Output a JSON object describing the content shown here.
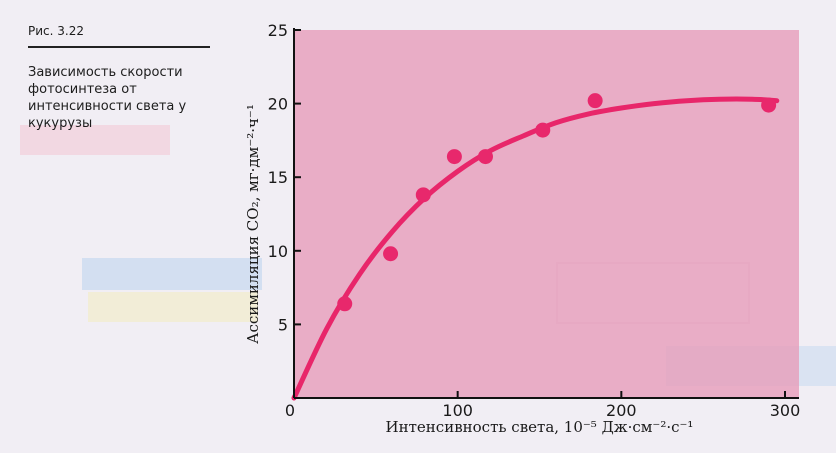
{
  "figure": {
    "number": "Рис. 3.22",
    "caption": "Зависимость скорости фотосинтеза от интенсивности света у кукурузы"
  },
  "colors": {
    "panel": "#e79bb8",
    "curve": "#e8266a",
    "points": "#e8286c"
  },
  "chart_data": {
    "type": "scatter",
    "xlabel": "Интенсивность света, 10⁻⁵ Дж·см⁻²·с⁻¹",
    "ylabel": "Ассимиляция CO₂, мг·дм⁻²·ч⁻¹",
    "xlim": [
      0,
      300
    ],
    "ylim": [
      0,
      25
    ],
    "x_ticks": [
      "100",
      "200",
      "300"
    ],
    "y_ticks": [
      "5",
      "10",
      "15",
      "20",
      "25"
    ],
    "origin_label": "0",
    "grid": false,
    "series": [
      {
        "x": [
          31,
          59,
          79,
          98,
          117,
          152,
          184,
          290
        ],
        "y": [
          6.4,
          9.8,
          13.8,
          16.4,
          16.4,
          18.2,
          20.2,
          19.9
        ]
      }
    ],
    "fit_curve": {
      "x": [
        0,
        20,
        40,
        60,
        80,
        100,
        120,
        140,
        160,
        180,
        200,
        220,
        240,
        260,
        280,
        295
      ],
      "y": [
        0,
        4.7,
        8.4,
        11.3,
        13.6,
        15.4,
        16.8,
        17.8,
        18.7,
        19.3,
        19.7,
        20.0,
        20.2,
        20.3,
        20.3,
        20.2
      ]
    }
  }
}
